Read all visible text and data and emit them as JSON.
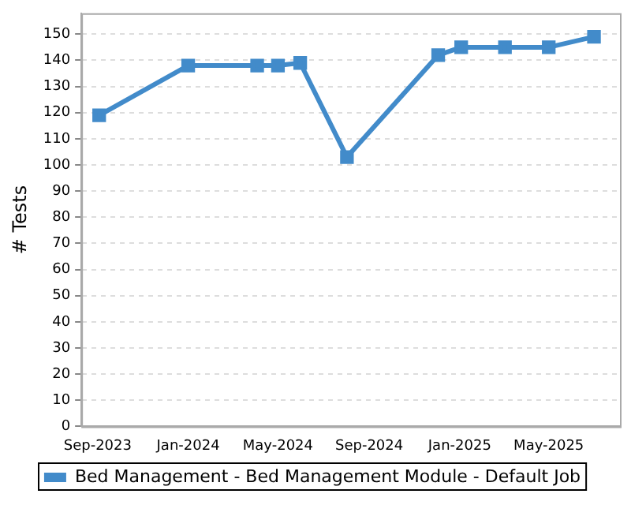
{
  "chart_data": {
    "type": "line",
    "ylabel": "# Tests",
    "x": [
      "2023-09-03",
      "2024-01-01",
      "2024-04-03",
      "2024-05-01",
      "2024-05-31",
      "2024-08-02",
      "2024-12-03",
      "2025-01-03",
      "2025-03-03",
      "2025-05-01",
      "2025-07-01"
    ],
    "series": [
      {
        "name": "Bed Management - Bed Management Module - Default Job",
        "color": "#428bca",
        "values": [
          119,
          138,
          138,
          138,
          139,
          103,
          142,
          145,
          145,
          145,
          149
        ]
      }
    ],
    "xlim": [
      "2023-08-10",
      "2025-08-05"
    ],
    "xticks": [
      {
        "value": "2023-09-01",
        "label": "Sep-2023"
      },
      {
        "value": "2024-01-01",
        "label": "Jan-2024"
      },
      {
        "value": "2024-05-01",
        "label": "May-2024"
      },
      {
        "value": "2024-09-01",
        "label": "Sep-2024"
      },
      {
        "value": "2025-01-01",
        "label": "Jan-2025"
      },
      {
        "value": "2025-05-01",
        "label": "May-2025"
      }
    ],
    "ylim": [
      0,
      158
    ],
    "yticks": [
      0,
      10,
      20,
      30,
      40,
      50,
      60,
      70,
      80,
      90,
      100,
      110,
      120,
      130,
      140,
      150
    ],
    "grid": "y",
    "legend": "bottom",
    "marker": "square",
    "line_style": "solid"
  }
}
